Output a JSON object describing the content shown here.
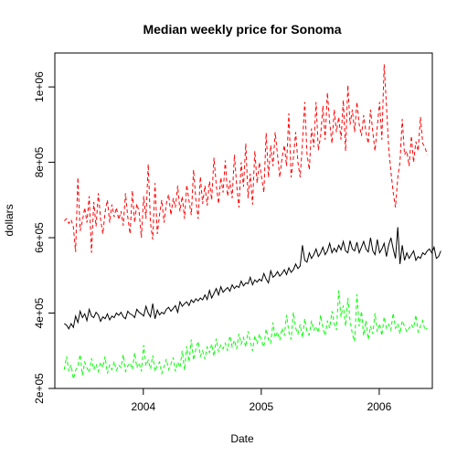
{
  "chart_data": {
    "type": "line",
    "title": "Median weekly price for Sonoma",
    "xlabel": "Date",
    "ylabel": "dollars",
    "xlim": [
      2003.25,
      2006.45
    ],
    "ylim": [
      200000,
      1090000
    ],
    "x_ticks": [
      {
        "value": 2004,
        "label": "2004"
      },
      {
        "value": 2005,
        "label": "2005"
      },
      {
        "value": 2006,
        "label": "2006"
      }
    ],
    "y_ticks": [
      {
        "value": 200000,
        "label": "2e+05"
      },
      {
        "value": 400000,
        "label": "4e+05"
      },
      {
        "value": 600000,
        "label": "6e+05"
      },
      {
        "value": 800000,
        "label": "8e+05"
      },
      {
        "value": 1000000,
        "label": "1e+06"
      }
    ],
    "grid": false,
    "legend": "none",
    "x_start": 2003.33,
    "x_step": 0.01923,
    "series": [
      {
        "color": "#000000",
        "dash": "solid",
        "values": [
          372000,
          368000,
          358000,
          372000,
          362000,
          392000,
          375000,
          405000,
          388000,
          398000,
          380000,
          410000,
          392000,
          388000,
          402000,
          395000,
          378000,
          390000,
          385000,
          398000,
          382000,
          392000,
          388000,
          400000,
          394000,
          402000,
          390000,
          385000,
          405000,
          398000,
          395000,
          388000,
          410000,
          402000,
          398000,
          392000,
          418000,
          400000,
          390000,
          425000,
          385000,
          408000,
          395000,
          402000,
          398000,
          410000,
          415000,
          405000,
          412000,
          420000,
          402000,
          430000,
          418000,
          425000,
          430000,
          420000,
          435000,
          428000,
          438000,
          432000,
          440000,
          435000,
          448000,
          436000,
          460000,
          440000,
          452000,
          465000,
          448000,
          470000,
          455000,
          462000,
          468000,
          458000,
          475000,
          465000,
          472000,
          468000,
          485000,
          472000,
          480000,
          478000,
          495000,
          475000,
          488000,
          482000,
          490000,
          485000,
          505000,
          490000,
          480000,
          512000,
          495000,
          500000,
          510000,
          498000,
          505000,
          515000,
          502000,
          520000,
          508000,
          515000,
          530000,
          518000,
          525000,
          580000,
          540000,
          535000,
          560000,
          545000,
          555000,
          570000,
          550000,
          560000,
          575000,
          555000,
          565000,
          585000,
          560000,
          572000,
          562000,
          580000,
          568000,
          590000,
          565000,
          560000,
          592000,
          570000,
          565000,
          588000,
          560000,
          575000,
          590000,
          570000,
          562000,
          600000,
          565000,
          555000,
          595000,
          560000,
          570000,
          585000,
          550000,
          580000,
          600000,
          570000,
          545000,
          628000,
          530000,
          580000,
          540000,
          560000,
          545000,
          555000,
          565000,
          540000,
          550000,
          545000,
          560000,
          555000,
          565000,
          570000,
          560000,
          575000,
          545000,
          550000,
          565000
        ]
      },
      {
        "color": "#ff0000",
        "dash": "dashed",
        "values": [
          645000,
          650000,
          638000,
          648000,
          628000,
          562000,
          760000,
          618000,
          645000,
          680000,
          640000,
          710000,
          560000,
          695000,
          630000,
          718000,
          650000,
          610000,
          668000,
          700000,
          640000,
          688000,
          655000,
          680000,
          648000,
          670000,
          632000,
          718000,
          655000,
          610000,
          725000,
          640000,
          690000,
          668000,
          600000,
          710000,
          650000,
          795000,
          640000,
          595000,
          745000,
          610000,
          662000,
          700000,
          640000,
          690000,
          715000,
          660000,
          705000,
          680000,
          738000,
          670000,
          710000,
          650000,
          740000,
          698000,
          660000,
          780000,
          700000,
          650000,
          762000,
          690000,
          738000,
          685000,
          750000,
          700000,
          812000,
          740000,
          690000,
          760000,
          720000,
          805000,
          710000,
          752000,
          705000,
          820000,
          740000,
          680000,
          800000,
          735000,
          850000,
          705000,
          770000,
          688000,
          830000,
          745000,
          800000,
          760000,
          720000,
          878000,
          760000,
          845000,
          790000,
          880000,
          820000,
          760000,
          812000,
          845000,
          790000,
          930000,
          760000,
          812000,
          880000,
          800000,
          760000,
          850000,
          960000,
          822000,
          780000,
          890000,
          840000,
          960000,
          832000,
          870000,
          950000,
          860000,
          985000,
          905000,
          850000,
          940000,
          880000,
          920000,
          860000,
          965000,
          830000,
          1005000,
          900000,
          940000,
          880000,
          960000,
          900000,
          870000,
          925000,
          880000,
          850000,
          940000,
          880000,
          830000,
          895000,
          960000,
          860000,
          1060000,
          950000,
          840000,
          775000,
          720000,
          680000,
          760000,
          800000,
          915000,
          820000,
          830000,
          790000,
          870000,
          800000,
          855000,
          830000,
          920000,
          850000,
          840000,
          820000
        ]
      },
      {
        "color": "#00ff00",
        "dash": "dashed",
        "values": [
          250000,
          285000,
          245000,
          262000,
          225000,
          248000,
          260000,
          290000,
          235000,
          270000,
          255000,
          242000,
          280000,
          250000,
          265000,
          245000,
          270000,
          255000,
          285000,
          240000,
          262000,
          250000,
          272000,
          248000,
          262000,
          255000,
          290000,
          245000,
          260000,
          268000,
          250000,
          295000,
          255000,
          268000,
          245000,
          315000,
          260000,
          275000,
          252000,
          288000,
          245000,
          262000,
          270000,
          240000,
          258000,
          278000,
          250000,
          265000,
          282000,
          245000,
          270000,
          255000,
          300000,
          248000,
          312000,
          270000,
          330000,
          275000,
          305000,
          325000,
          285000,
          300000,
          278000,
          310000,
          295000,
          318000,
          285000,
          332000,
          298000,
          315000,
          305000,
          320000,
          300000,
          340000,
          310000,
          328000,
          305000,
          345000,
          318000,
          335000,
          310000,
          352000,
          325000,
          300000,
          340000,
          318000,
          345000,
          325000,
          310000,
          358000,
          330000,
          320000,
          375000,
          335000,
          350000,
          328000,
          360000,
          340000,
          395000,
          350000,
          330000,
          402000,
          360000,
          345000,
          370000,
          335000,
          385000,
          350000,
          342000,
          380000,
          355000,
          365000,
          348000,
          395000,
          360000,
          340000,
          380000,
          360000,
          405000,
          372000,
          355000,
          460000,
          390000,
          420000,
          365000,
          440000,
          380000,
          345000,
          325000,
          450000,
          365000,
          405000,
          340000,
          380000,
          330000,
          365000,
          345000,
          400000,
          350000,
          372000,
          340000,
          390000,
          360000,
          370000,
          355000,
          400000,
          360000,
          372000,
          345000,
          380000,
          365000,
          350000,
          360000,
          370000,
          360000,
          395000,
          350000,
          365000,
          380000,
          355000,
          360000
        ]
      }
    ]
  }
}
